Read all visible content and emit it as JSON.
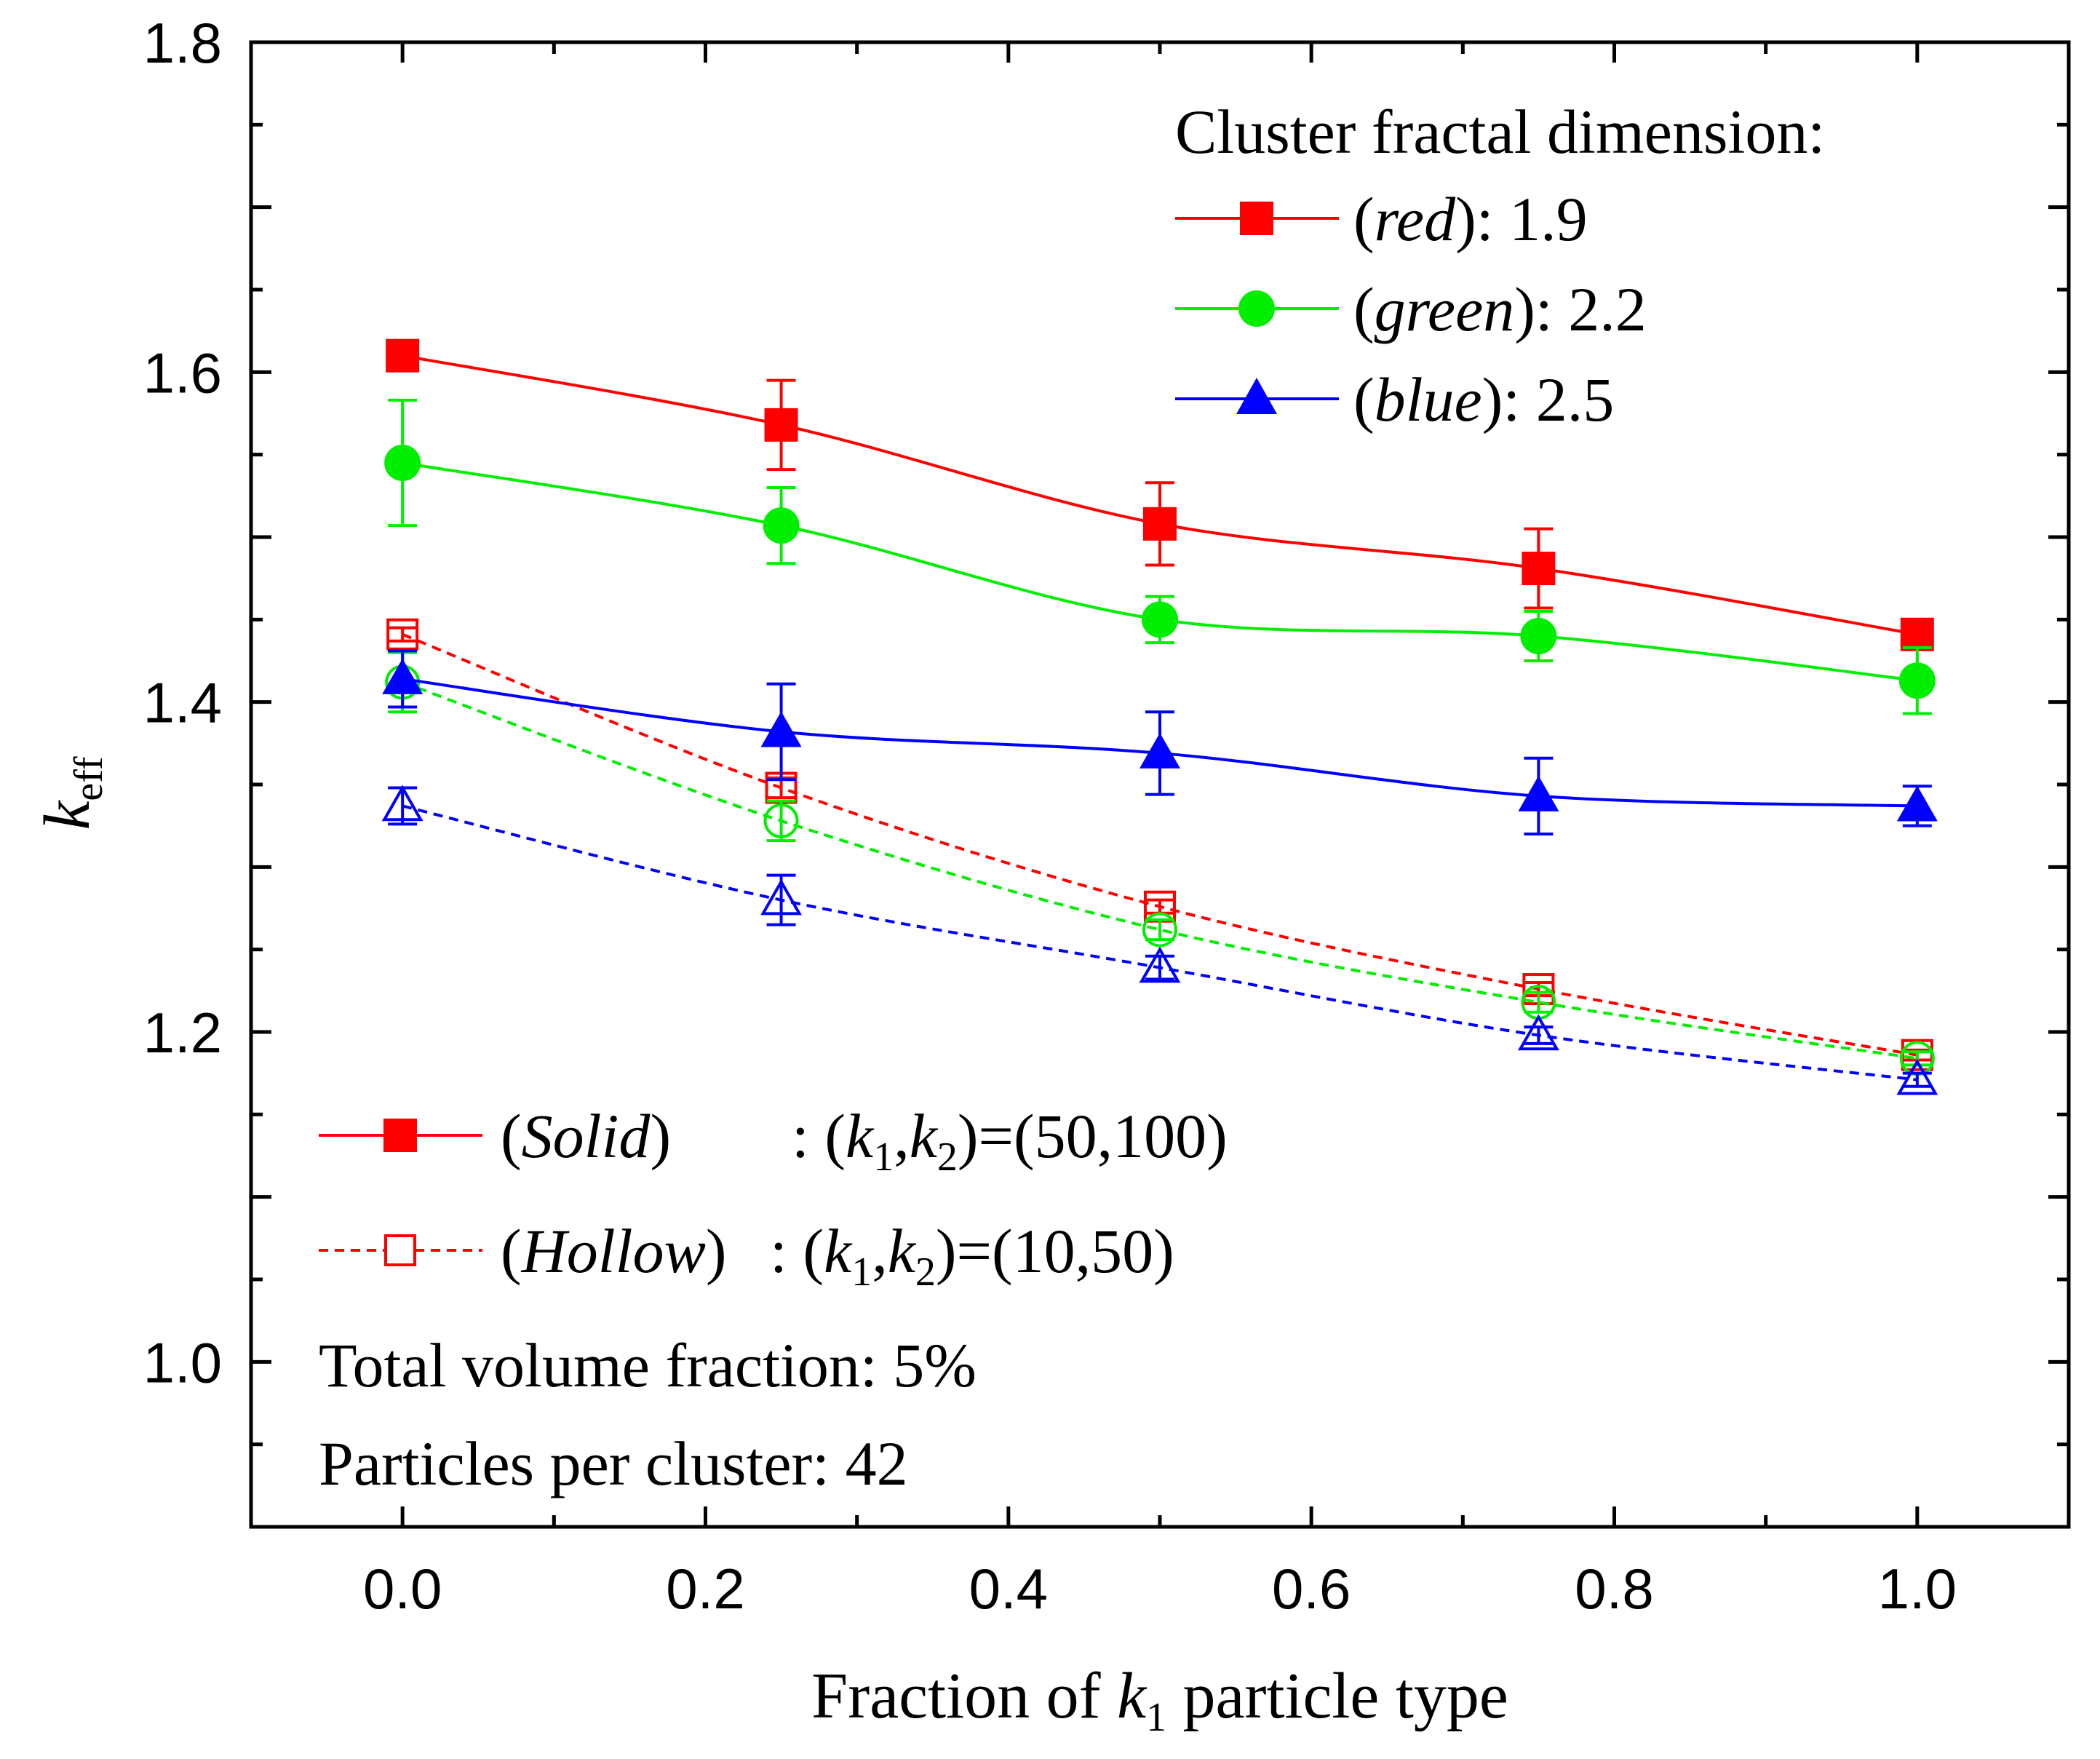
{
  "chart_data": {
    "type": "line",
    "title": "",
    "xlabel": "Fraction of k1 particle type",
    "xlabel_parts": {
      "pre": "Fraction of ",
      "var": "k",
      "sub": "1",
      "post": " particle type"
    },
    "ylabel": "keff",
    "ylabel_parts": {
      "var": "k",
      "sub": "eff"
    },
    "xlim": [
      -0.1,
      1.1
    ],
    "ylim": [
      0.9,
      1.8
    ],
    "x_ticks": [
      "0.0",
      "0.2",
      "0.4",
      "0.6",
      "0.8",
      "1.0"
    ],
    "y_ticks": [
      "1.0",
      "1.2",
      "1.4",
      "1.6",
      "1.8"
    ],
    "x": [
      0.0,
      0.25,
      0.5,
      0.75,
      1.0
    ],
    "series": [
      {
        "name": "red solid",
        "color": "#ff0000",
        "marker": "square",
        "filled": true,
        "dash": false,
        "values": [
          1.61,
          1.568,
          1.508,
          1.481,
          1.441
        ],
        "errors": [
          0.004,
          0.027,
          0.025,
          0.024,
          0.004
        ]
      },
      {
        "name": "green solid",
        "color": "#00ee00",
        "marker": "circle",
        "filled": true,
        "dash": false,
        "values": [
          1.545,
          1.507,
          1.45,
          1.44,
          1.413
        ],
        "errors": [
          0.038,
          0.023,
          0.014,
          0.015,
          0.02
        ]
      },
      {
        "name": "blue solid",
        "color": "#0000ff",
        "marker": "triangle",
        "filled": true,
        "dash": false,
        "values": [
          1.414,
          1.382,
          1.369,
          1.343,
          1.337
        ],
        "errors": [
          0.017,
          0.029,
          0.025,
          0.023,
          0.012
        ]
      },
      {
        "name": "red hollow",
        "color": "#ff0000",
        "marker": "square",
        "filled": false,
        "dash": true,
        "values": [
          1.441,
          1.348,
          1.276,
          1.226,
          1.186
        ],
        "errors": [
          0.004,
          0.006,
          0.004,
          0.004,
          0.003
        ]
      },
      {
        "name": "green hollow",
        "color": "#00ee00",
        "marker": "circle",
        "filled": false,
        "dash": true,
        "values": [
          1.412,
          1.328,
          1.262,
          1.218,
          1.184
        ],
        "errors": [
          0.018,
          0.012,
          0.006,
          0.006,
          0.004
        ]
      },
      {
        "name": "blue hollow",
        "color": "#0000ff",
        "marker": "triangle",
        "filled": false,
        "dash": true,
        "values": [
          1.337,
          1.28,
          1.239,
          1.198,
          1.171
        ],
        "errors": [
          0.011,
          0.015,
          0.007,
          0.005,
          0.004
        ]
      }
    ],
    "legend_colors": {
      "heading": "Cluster fractal dimension:",
      "items": [
        {
          "color": "#ff0000",
          "marker": "square",
          "label": "red",
          "value": "): 1.9"
        },
        {
          "color": "#00ee00",
          "marker": "circle",
          "label": "green",
          "value": "): 2.2"
        },
        {
          "color": "#0000ff",
          "marker": "triangle",
          "label": "blue",
          "value": "): 2.5"
        }
      ]
    },
    "legend_styles": {
      "solid": {
        "label": "Solid",
        "eq_pre": ": (",
        "k": "k",
        "s1": "1",
        "mid": ",",
        "s2": "2",
        "eq_post": ")=(50,100)"
      },
      "hollow": {
        "label": "Hollow",
        "eq_pre": " : (",
        "k": "k",
        "s1": "1",
        "mid": ",",
        "s2": "2",
        "eq_post": ")=(10,50)"
      }
    },
    "annotations": [
      "Total volume fraction: 5%",
      "Particles per cluster: 42"
    ]
  }
}
